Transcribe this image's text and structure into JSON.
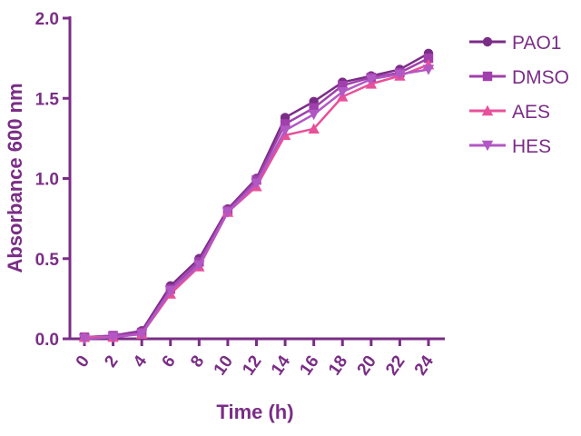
{
  "chart_data": {
    "type": "line",
    "xlabel": "Time (h)",
    "ylabel": "Absorbance 600 nm",
    "xlim": [
      0,
      24
    ],
    "ylim": [
      0,
      2.0
    ],
    "x": [
      0,
      2,
      4,
      6,
      8,
      10,
      12,
      14,
      16,
      18,
      20,
      22,
      24
    ],
    "x_ticks": [
      "0",
      "2",
      "4",
      "6",
      "8",
      "10",
      "12",
      "14",
      "16",
      "18",
      "20",
      "22",
      "24"
    ],
    "y_ticks": [
      "0.0",
      "0.5",
      "1.0",
      "1.5",
      "2.0"
    ],
    "y_tick_values": [
      0,
      0.5,
      1.0,
      1.5,
      2.0
    ],
    "grid": false,
    "legend_position": "right",
    "series": [
      {
        "name": "PAO1",
        "marker": "circle",
        "color": "#7a2d86",
        "values": [
          0.01,
          0.02,
          0.05,
          0.33,
          0.5,
          0.81,
          1.0,
          1.38,
          1.48,
          1.6,
          1.64,
          1.68,
          1.78
        ]
      },
      {
        "name": "DMSO",
        "marker": "square",
        "color": "#a040ad",
        "values": [
          0.01,
          0.02,
          0.04,
          0.31,
          0.48,
          0.8,
          0.99,
          1.34,
          1.44,
          1.58,
          1.63,
          1.66,
          1.75
        ]
      },
      {
        "name": "AES",
        "marker": "triangle-up",
        "color": "#e8509a",
        "values": [
          0.01,
          0.01,
          0.03,
          0.28,
          0.45,
          0.79,
          0.95,
          1.27,
          1.31,
          1.51,
          1.59,
          1.64,
          1.71
        ]
      },
      {
        "name": "HES",
        "marker": "triangle-down",
        "color": "#b258c4",
        "values": [
          0.0,
          0.01,
          0.03,
          0.3,
          0.46,
          0.79,
          0.97,
          1.3,
          1.4,
          1.54,
          1.62,
          1.65,
          1.68
        ]
      }
    ]
  }
}
